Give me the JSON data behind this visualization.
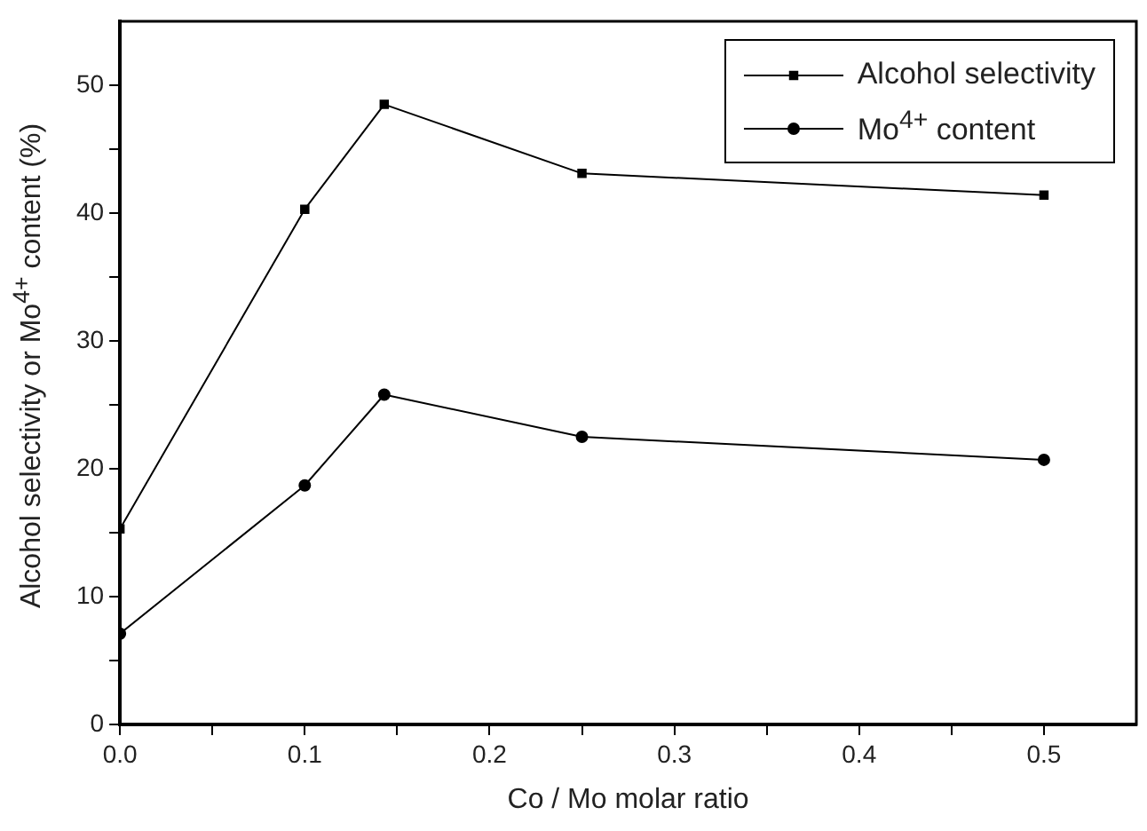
{
  "chart_data": {
    "type": "line",
    "xlabel": "Co / Mo molar ratio",
    "ylabel": "Alcohol selectivity or Mo$^{4+}$ content (%)",
    "x": [
      0,
      0.1,
      0.143,
      0.25,
      0.5
    ],
    "series": [
      {
        "name": "Alcohol selectivity",
        "color": "#000000",
        "marker": "square",
        "values": [
          15.3,
          40.3,
          48.5,
          43.1,
          41.4
        ]
      },
      {
        "name": "Mo$^{4+}$ content",
        "color": "#000000",
        "marker": "circle",
        "values": [
          7.1,
          18.7,
          25.8,
          22.5,
          20.7
        ]
      }
    ],
    "xlim": [
      0,
      0.55
    ],
    "xticks": [
      {
        "value": 0,
        "label": "0.0"
      },
      {
        "value": 0.05,
        "label": null
      },
      0.1,
      {
        "value": 0.15,
        "label": null
      },
      0.2,
      {
        "value": 0.25,
        "label": null
      },
      0.3,
      {
        "value": 0.35,
        "label": null
      },
      0.4,
      {
        "value": 0.45,
        "label": null
      },
      0.5
    ],
    "ylim": [
      0,
      55
    ],
    "yticks": [
      0,
      {
        "value": 5,
        "label": null
      },
      10,
      {
        "value": 15,
        "label": null
      },
      20,
      {
        "value": 25,
        "label": null
      },
      30,
      {
        "value": 35,
        "label": null
      },
      40,
      {
        "value": 45,
        "label": null
      },
      50
    ],
    "grid": false,
    "legend": "top right",
    "line_style": "solid"
  }
}
